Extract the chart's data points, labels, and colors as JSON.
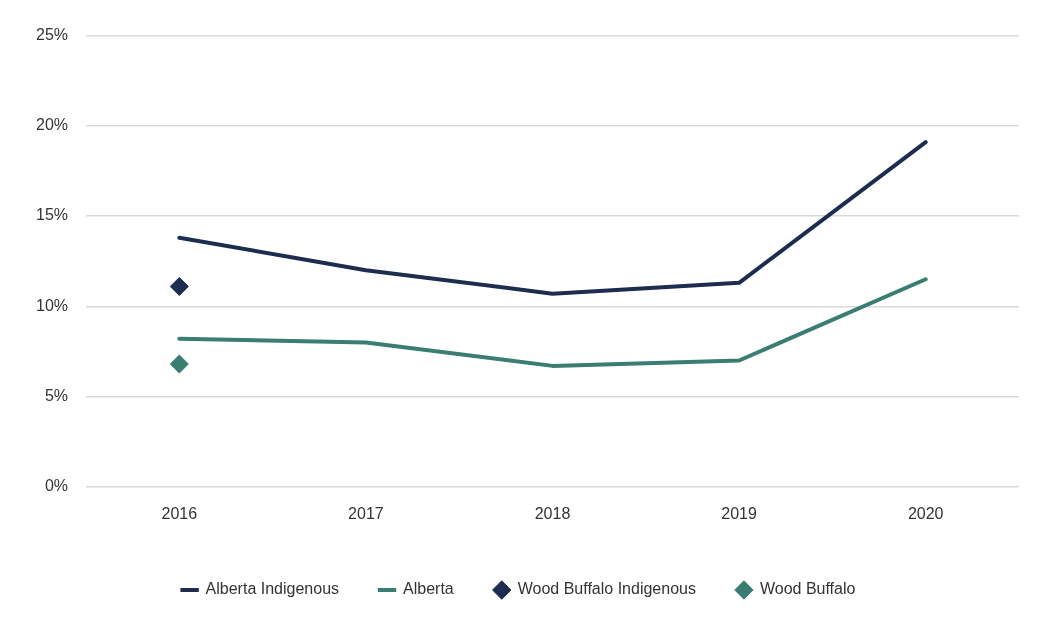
{
  "chart_data": {
    "type": "line",
    "categories": [
      "2016",
      "2017",
      "2018",
      "2019",
      "2020"
    ],
    "series": [
      {
        "name": "Alberta Indigenous",
        "color": "#1c2d4f",
        "values": [
          13.8,
          12.0,
          10.7,
          11.3,
          19.1
        ]
      },
      {
        "name": "Alberta",
        "color": "#3a7d72",
        "values": [
          8.2,
          8.0,
          6.7,
          7.0,
          11.5
        ]
      },
      {
        "name": "Wood Buffalo Indigenous",
        "type": "scatter",
        "color": "#1c2d4f",
        "marker": "diamond",
        "values": [
          11.1,
          null,
          null,
          null,
          null
        ]
      },
      {
        "name": "Wood Buffalo",
        "type": "scatter",
        "color": "#3a7d72",
        "marker": "diamond",
        "values": [
          6.8,
          null,
          null,
          null,
          null
        ]
      }
    ],
    "ylim": [
      0,
      25
    ],
    "yticks": [
      {
        "value": 0,
        "label": "0%"
      },
      {
        "value": 5,
        "label": "5%"
      },
      {
        "value": 10,
        "label": "10%"
      },
      {
        "value": 15,
        "label": "15%"
      },
      {
        "value": 20,
        "label": "20%"
      },
      {
        "value": 25,
        "label": "25%"
      }
    ],
    "grid": "y",
    "legend": "bottom"
  }
}
